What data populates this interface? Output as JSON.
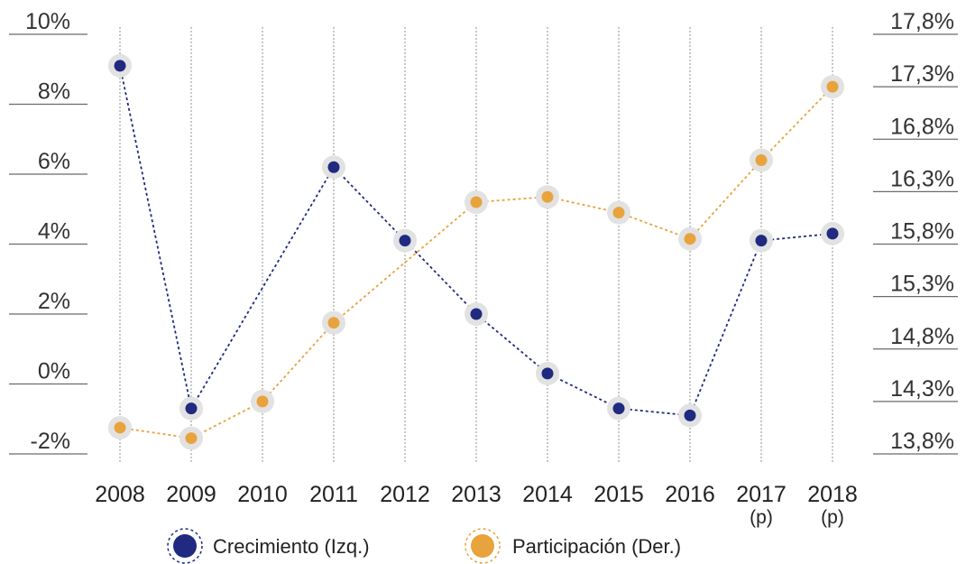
{
  "chart_data": {
    "type": "line",
    "categories": [
      "2008",
      "2009",
      "2010",
      "2011",
      "2012",
      "2013",
      "2014",
      "2015",
      "2016",
      "2017",
      "2018"
    ],
    "category_sublabels": [
      "",
      "",
      "",
      "",
      "",
      "",
      "",
      "",
      "",
      "(p)",
      "(p)"
    ],
    "left_axis": {
      "ticks": [
        "10%",
        "8%",
        "6%",
        "4%",
        "2%",
        "0%",
        "-2%"
      ],
      "range": [
        -2,
        10
      ]
    },
    "right_axis": {
      "ticks": [
        "17,8%",
        "17,3%",
        "16,8%",
        "16,3%",
        "15,8%",
        "15,3%",
        "14,8%",
        "14,3%",
        "13,8%"
      ],
      "range": [
        13.8,
        17.8
      ]
    },
    "series": [
      {
        "name": "Crecimiento (Izq.)",
        "axis": "left",
        "color": "#1f2a80",
        "values": [
          9.1,
          -0.7,
          null,
          6.2,
          4.1,
          2.0,
          0.3,
          -0.7,
          -0.9,
          4.1,
          4.3
        ]
      },
      {
        "name": "Participación (Der.)",
        "axis": "right",
        "color": "#e8a33d",
        "values": [
          14.05,
          13.95,
          14.3,
          15.05,
          null,
          16.2,
          16.25,
          16.1,
          15.85,
          16.6,
          17.3
        ]
      }
    ],
    "grid": "vertical-dotted",
    "legend": "bottom-center"
  }
}
